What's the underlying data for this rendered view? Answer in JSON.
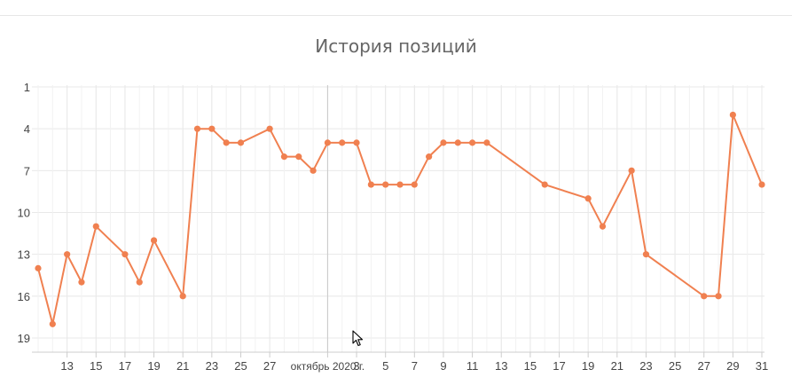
{
  "chart_data": {
    "type": "line",
    "title": "История позиций",
    "xlabel": "",
    "ylabel": "",
    "y_inverted": true,
    "ylim": [
      1,
      19
    ],
    "y_ticks": [
      1,
      4,
      7,
      10,
      13,
      16,
      19
    ],
    "x_ticks": [
      {
        "label": "13",
        "date": "2020-09-13"
      },
      {
        "label": "15",
        "date": "2020-09-15"
      },
      {
        "label": "17",
        "date": "2020-09-17"
      },
      {
        "label": "19",
        "date": "2020-09-19"
      },
      {
        "label": "21",
        "date": "2020-09-21"
      },
      {
        "label": "23",
        "date": "2020-09-23"
      },
      {
        "label": "25",
        "date": "2020-09-25"
      },
      {
        "label": "27",
        "date": "2020-09-27"
      },
      {
        "label": "октябрь 2020 г.",
        "date": "2020-10-01"
      },
      {
        "label": "3",
        "date": "2020-10-03"
      },
      {
        "label": "5",
        "date": "2020-10-05"
      },
      {
        "label": "7",
        "date": "2020-10-07"
      },
      {
        "label": "9",
        "date": "2020-10-09"
      },
      {
        "label": "11",
        "date": "2020-10-11"
      },
      {
        "label": "13",
        "date": "2020-10-13"
      },
      {
        "label": "15",
        "date": "2020-10-15"
      },
      {
        "label": "17",
        "date": "2020-10-17"
      },
      {
        "label": "19",
        "date": "2020-10-19"
      },
      {
        "label": "21",
        "date": "2020-10-21"
      },
      {
        "label": "23",
        "date": "2020-10-23"
      },
      {
        "label": "25",
        "date": "2020-10-25"
      },
      {
        "label": "27",
        "date": "2020-10-27"
      },
      {
        "label": "29",
        "date": "2020-10-29"
      },
      {
        "label": "31",
        "date": "2020-10-31"
      }
    ],
    "grid": true,
    "series_color": "#f08050",
    "series": [
      {
        "points": [
          {
            "x": "2020-09-11",
            "y": 14
          },
          {
            "x": "2020-09-12",
            "y": 18
          },
          {
            "x": "2020-09-13",
            "y": 13
          },
          {
            "x": "2020-09-14",
            "y": 15
          },
          {
            "x": "2020-09-15",
            "y": 11
          },
          {
            "x": "2020-09-17",
            "y": 13
          },
          {
            "x": "2020-09-18",
            "y": 15
          },
          {
            "x": "2020-09-19",
            "y": 12
          },
          {
            "x": "2020-09-21",
            "y": 16
          },
          {
            "x": "2020-09-22",
            "y": 4
          },
          {
            "x": "2020-09-23",
            "y": 4
          },
          {
            "x": "2020-09-24",
            "y": 5
          },
          {
            "x": "2020-09-25",
            "y": 5
          },
          {
            "x": "2020-09-27",
            "y": 4
          },
          {
            "x": "2020-09-28",
            "y": 6
          },
          {
            "x": "2020-09-29",
            "y": 6
          },
          {
            "x": "2020-09-30",
            "y": 7
          },
          {
            "x": "2020-10-01",
            "y": 5
          },
          {
            "x": "2020-10-02",
            "y": 5
          },
          {
            "x": "2020-10-03",
            "y": 5
          },
          {
            "x": "2020-10-04",
            "y": 8
          },
          {
            "x": "2020-10-05",
            "y": 8
          },
          {
            "x": "2020-10-06",
            "y": 8
          },
          {
            "x": "2020-10-07",
            "y": 8
          },
          {
            "x": "2020-10-08",
            "y": 6
          },
          {
            "x": "2020-10-09",
            "y": 5
          },
          {
            "x": "2020-10-10",
            "y": 5
          },
          {
            "x": "2020-10-11",
            "y": 5
          },
          {
            "x": "2020-10-12",
            "y": 5
          },
          {
            "x": "2020-10-16",
            "y": 8
          },
          {
            "x": "2020-10-19",
            "y": 9
          },
          {
            "x": "2020-10-20",
            "y": 11
          },
          {
            "x": "2020-10-22",
            "y": 7
          },
          {
            "x": "2020-10-23",
            "y": 13
          },
          {
            "x": "2020-10-27",
            "y": 16
          },
          {
            "x": "2020-10-28",
            "y": 16
          },
          {
            "x": "2020-10-29",
            "y": 3
          },
          {
            "x": "2020-10-31",
            "y": 8
          }
        ]
      }
    ]
  }
}
